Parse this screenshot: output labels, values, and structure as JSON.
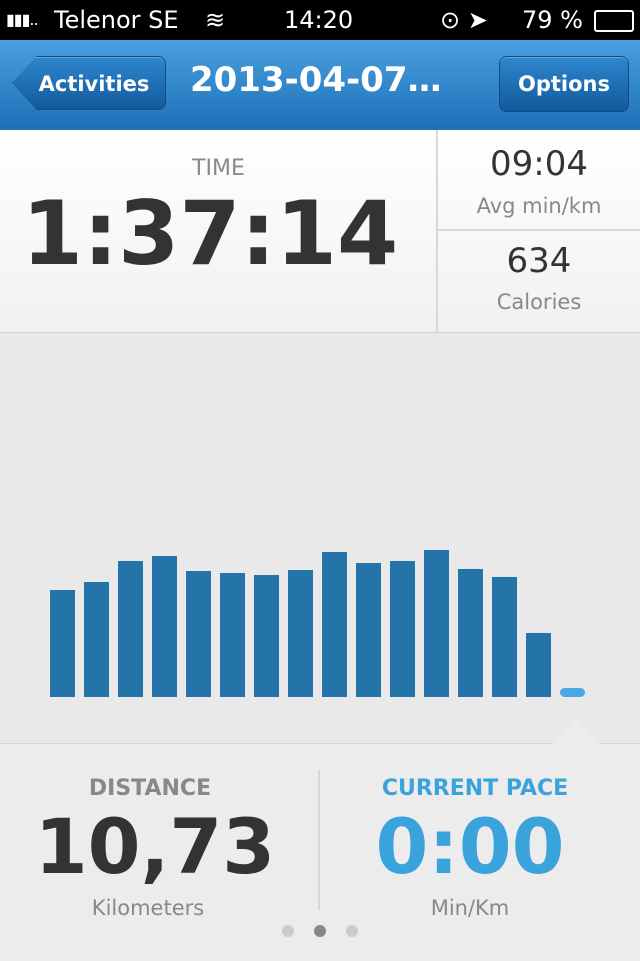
{
  "status_bar": {
    "carrier": "Telenor SE",
    "time": "14:20",
    "battery": "79 %"
  },
  "nav_bar": {
    "back_button": "Activities",
    "title": "2013-04-07…",
    "options_button": "Options"
  },
  "summary": {
    "time_label": "TIME",
    "time_value": "1:37:14",
    "avg_pace_value": "09:04",
    "avg_pace_label": "Avg min/km",
    "calories_value": "634",
    "calories_label": "Calories"
  },
  "pace_chart": {
    "values": [
      107,
      115,
      136,
      141,
      126,
      124,
      122,
      127,
      145,
      134,
      136,
      147,
      128,
      120,
      64,
      9
    ],
    "color": "#2574a9",
    "current_color": "#4aa8e0"
  },
  "stats": {
    "distance_label": "DISTANCE",
    "distance_value": "10,73",
    "distance_unit": "Kilometers",
    "pace_label": "CURRENT PACE",
    "pace_value": "0:00",
    "pace_unit": "Min/Km"
  }
}
